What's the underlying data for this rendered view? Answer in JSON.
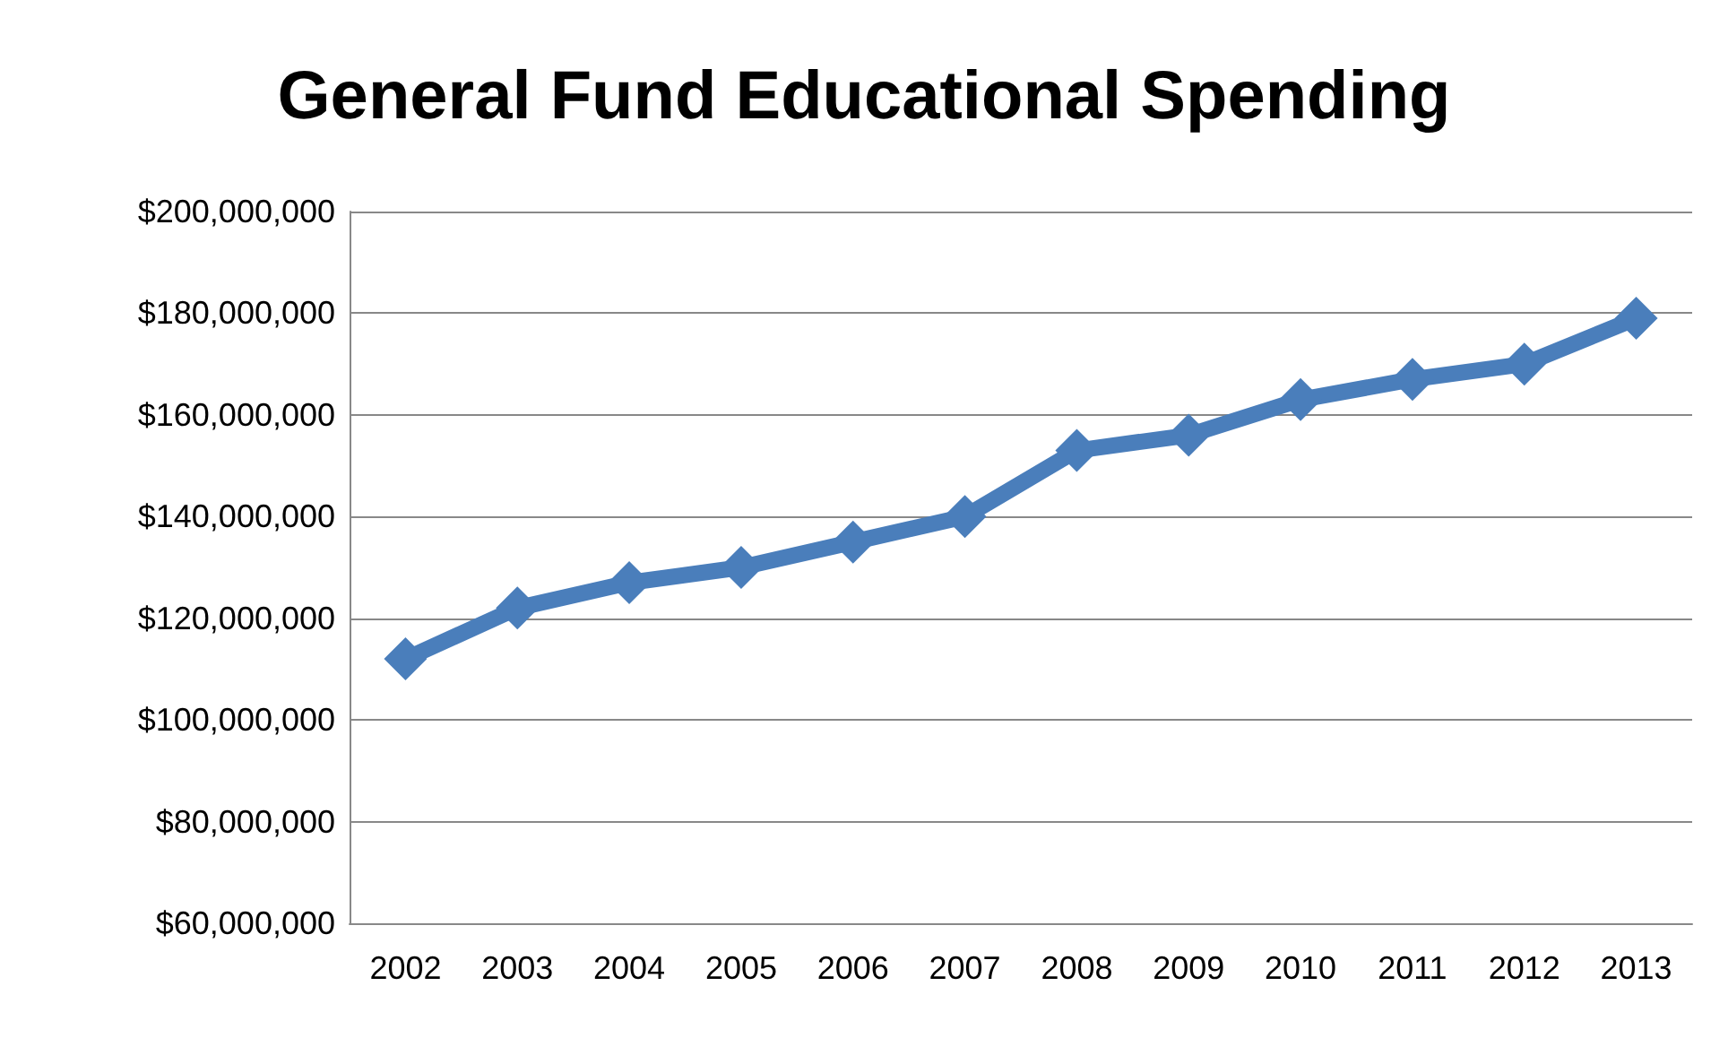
{
  "chart_data": {
    "type": "line",
    "title": "General Fund Educational Spending",
    "categories": [
      "2002",
      "2003",
      "2004",
      "2005",
      "2006",
      "2007",
      "2008",
      "2009",
      "2010",
      "2011",
      "2012",
      "2013"
    ],
    "series": [
      {
        "color": "#4a7ebb",
        "values": [
          112000000,
          122000000,
          127000000,
          130000000,
          135000000,
          140000000,
          153000000,
          156000000,
          163000000,
          167000000,
          170000000,
          179000000
        ]
      }
    ],
    "ylim": [
      60000000,
      200000000
    ],
    "yticks": [
      {
        "value": 60000000,
        "label": "$60,000,000"
      },
      {
        "value": 80000000,
        "label": "$80,000,000"
      },
      {
        "value": 100000000,
        "label": "$100,000,000"
      },
      {
        "value": 120000000,
        "label": "$120,000,000"
      },
      {
        "value": 140000000,
        "label": "$140,000,000"
      },
      {
        "value": 160000000,
        "label": "$160,000,000"
      },
      {
        "value": 180000000,
        "label": "$180,000,000"
      },
      {
        "value": 200000000,
        "label": "$200,000,000"
      }
    ],
    "grid": "y",
    "marker": "diamond",
    "line_style": "solid"
  }
}
